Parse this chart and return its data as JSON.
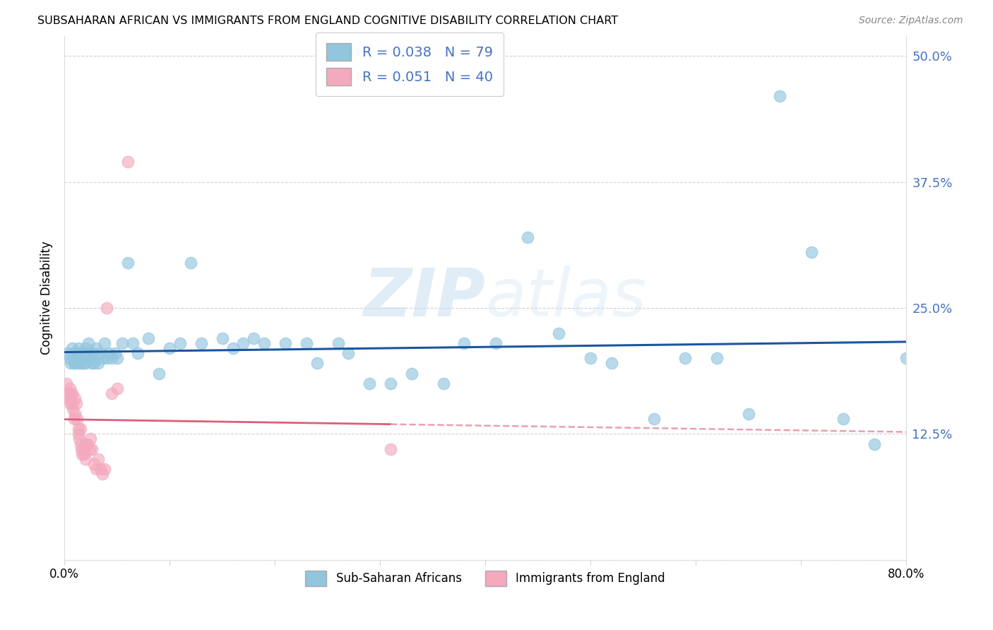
{
  "title": "SUBSAHARAN AFRICAN VS IMMIGRANTS FROM ENGLAND COGNITIVE DISABILITY CORRELATION CHART",
  "source": "Source: ZipAtlas.com",
  "ylabel": "Cognitive Disability",
  "y_ticks": [
    0.0,
    0.125,
    0.25,
    0.375,
    0.5
  ],
  "y_tick_labels": [
    "",
    "12.5%",
    "25.0%",
    "37.5%",
    "50.0%"
  ],
  "xlim": [
    0.0,
    0.8
  ],
  "ylim": [
    0.0,
    0.52
  ],
  "blue_color": "#92c5de",
  "pink_color": "#f4a9be",
  "trend_blue_color": "#1a56a0",
  "trend_pink_color": "#d9607a",
  "trend_pink_dash_color": "#e8a0b0",
  "watermark_zip": "ZIP",
  "watermark_atlas": "atlas",
  "label1": "Sub-Saharan Africans",
  "label2": "Immigrants from England",
  "blue_x": [
    0.003,
    0.005,
    0.006,
    0.007,
    0.008,
    0.009,
    0.01,
    0.01,
    0.011,
    0.012,
    0.013,
    0.013,
    0.014,
    0.015,
    0.015,
    0.016,
    0.017,
    0.018,
    0.018,
    0.019,
    0.02,
    0.02,
    0.021,
    0.022,
    0.023,
    0.024,
    0.025,
    0.026,
    0.027,
    0.028,
    0.03,
    0.032,
    0.034,
    0.036,
    0.038,
    0.04,
    0.042,
    0.045,
    0.048,
    0.05,
    0.055,
    0.06,
    0.065,
    0.07,
    0.08,
    0.09,
    0.1,
    0.11,
    0.12,
    0.13,
    0.15,
    0.16,
    0.17,
    0.18,
    0.19,
    0.21,
    0.23,
    0.24,
    0.26,
    0.27,
    0.29,
    0.31,
    0.33,
    0.36,
    0.38,
    0.41,
    0.44,
    0.47,
    0.5,
    0.52,
    0.56,
    0.59,
    0.62,
    0.65,
    0.68,
    0.71,
    0.74,
    0.77,
    0.8
  ],
  "blue_y": [
    0.205,
    0.2,
    0.195,
    0.21,
    0.2,
    0.195,
    0.205,
    0.195,
    0.2,
    0.205,
    0.195,
    0.21,
    0.2,
    0.205,
    0.195,
    0.2,
    0.205,
    0.195,
    0.205,
    0.2,
    0.21,
    0.195,
    0.2,
    0.205,
    0.215,
    0.2,
    0.205,
    0.195,
    0.205,
    0.195,
    0.21,
    0.195,
    0.205,
    0.2,
    0.215,
    0.2,
    0.205,
    0.2,
    0.205,
    0.2,
    0.215,
    0.295,
    0.215,
    0.205,
    0.22,
    0.185,
    0.21,
    0.215,
    0.295,
    0.215,
    0.22,
    0.21,
    0.215,
    0.22,
    0.215,
    0.215,
    0.215,
    0.195,
    0.215,
    0.205,
    0.175,
    0.175,
    0.185,
    0.175,
    0.215,
    0.215,
    0.32,
    0.225,
    0.2,
    0.195,
    0.14,
    0.2,
    0.2,
    0.145,
    0.46,
    0.305,
    0.14,
    0.115,
    0.2
  ],
  "pink_x": [
    0.002,
    0.003,
    0.004,
    0.005,
    0.005,
    0.006,
    0.007,
    0.007,
    0.008,
    0.009,
    0.01,
    0.01,
    0.011,
    0.012,
    0.013,
    0.013,
    0.014,
    0.015,
    0.015,
    0.016,
    0.017,
    0.018,
    0.019,
    0.02,
    0.02,
    0.022,
    0.024,
    0.025,
    0.026,
    0.028,
    0.03,
    0.032,
    0.034,
    0.036,
    0.038,
    0.04,
    0.045,
    0.05,
    0.06,
    0.31
  ],
  "pink_y": [
    0.175,
    0.165,
    0.16,
    0.17,
    0.155,
    0.165,
    0.155,
    0.165,
    0.15,
    0.14,
    0.16,
    0.145,
    0.155,
    0.14,
    0.13,
    0.125,
    0.12,
    0.13,
    0.115,
    0.11,
    0.105,
    0.11,
    0.105,
    0.115,
    0.1,
    0.115,
    0.11,
    0.12,
    0.11,
    0.095,
    0.09,
    0.1,
    0.09,
    0.085,
    0.09,
    0.25,
    0.165,
    0.17,
    0.395,
    0.11
  ]
}
